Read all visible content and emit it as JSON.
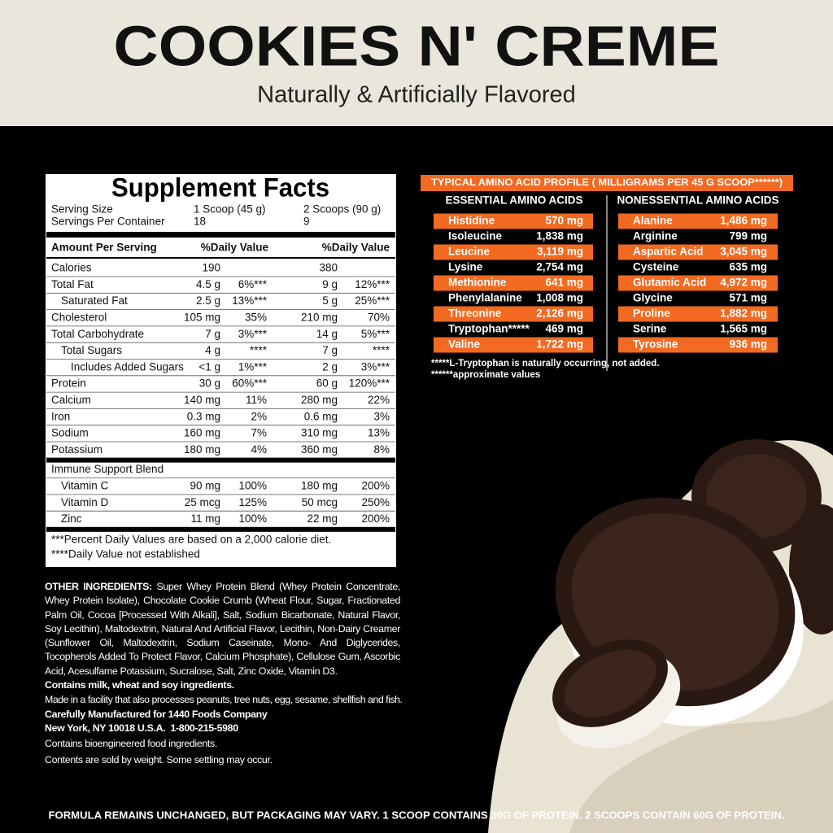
{
  "header": {
    "title": "COOKIES N' CREME",
    "subtitle": "Naturally & Artificially Flavored"
  },
  "supplement_facts": {
    "title": "Supplement Facts",
    "serving_size": {
      "label": "Serving Size",
      "values": [
        "1 Scoop (45 g)",
        "2 Scoops (90 g)"
      ]
    },
    "servings_per_container": {
      "label": "Servings Per Container",
      "values": [
        "18",
        "9"
      ]
    },
    "column_headers": [
      "Amount Per Serving",
      "%Daily Value",
      "%Daily Value"
    ],
    "rows": [
      {
        "cells": [
          "Calories",
          "190",
          null,
          "380",
          null
        ]
      },
      {
        "cells": [
          "Total Fat",
          "4.5 g",
          "6%***",
          "9 g",
          "12%***"
        ],
        "rows": [
          {
            "cells": [
              "Saturated Fat",
              "2.5 g",
              "13%***",
              "5 g",
              "25%***"
            ]
          }
        ]
      },
      {
        "cells": [
          "Cholesterol",
          "105 mg",
          "35%",
          "210 mg",
          "70%"
        ]
      },
      {
        "cells": [
          "Total Carbohydrate",
          "7 g",
          "3%***",
          "14 g",
          "5%***"
        ],
        "rows": [
          {
            "cells": [
              "Total Sugars",
              "4 g",
              "****",
              "7 g",
              "****"
            ],
            "rows": [
              {
                "cells": [
                  "Includes Added Sugars",
                  "<1 g",
                  "1%***",
                  "2 g",
                  "3%***"
                ]
              }
            ]
          }
        ]
      },
      {
        "cells": [
          "Protein",
          "30 g",
          "60%***",
          "60 g",
          "120%***"
        ]
      },
      {
        "cells": [
          "Calcium",
          "140 mg",
          "11%",
          "280 mg",
          "22%"
        ]
      },
      {
        "cells": [
          "Iron",
          "0.3 mg",
          "2%",
          "0.6 mg",
          "3%"
        ]
      },
      {
        "cells": [
          "Sodium",
          "160 mg",
          "7%",
          "310 mg",
          "13%"
        ]
      },
      {
        "cells": [
          "Potassium",
          "180 mg",
          "4%",
          "360 mg",
          "8%"
        ]
      }
    ],
    "blend": {
      "name": "Immune Support Blend",
      "rows": [
        {
          "cells": [
            "Vitamin C",
            "90 mg",
            "100%",
            "180 mg",
            "200%"
          ]
        },
        {
          "cells": [
            "Vitamin D",
            "25 mcg",
            "125%",
            "50 mcg",
            "250%"
          ]
        },
        {
          "cells": [
            "Zinc",
            "11 mg",
            "100%",
            "22 mg",
            "200%"
          ]
        }
      ]
    },
    "footnotes": [
      "***Percent Daily Values are based on a 2,000 calorie diet.",
      "****Daily Value not established"
    ]
  },
  "amino_profile": {
    "title": "TYPICAL AMINO ACID PROFILE ( MILLIGRAMS PER 45 G SCOOP******)",
    "groups": [
      {
        "heading": "ESSENTIAL AMINO ACIDS",
        "acids": [
          {
            "name": "Histidine",
            "amount": "570 mg"
          },
          {
            "name": "Isoleucine",
            "amount": "1,838 mg"
          },
          {
            "name": "Leucine",
            "amount": "3,119 mg"
          },
          {
            "name": "Lysine",
            "amount": "2,754 mg"
          },
          {
            "name": "Methionine",
            "amount": "641 mg"
          },
          {
            "name": "Phenylalanine",
            "amount": "1,008 mg"
          },
          {
            "name": "Threonine",
            "amount": "2,126 mg"
          },
          {
            "name": "Tryptophan*****",
            "amount": "469 mg"
          },
          {
            "name": "Valine",
            "amount": "1,722 mg"
          }
        ]
      },
      {
        "heading": "NONESSENTIAL AMINO ACIDS",
        "acids": [
          {
            "name": "Alanine",
            "amount": "1,486 mg"
          },
          {
            "name": "Arginine",
            "amount": "799 mg"
          },
          {
            "name": "Aspartic Acid",
            "amount": "3,045 mg"
          },
          {
            "name": "Cysteine",
            "amount": "635 mg"
          },
          {
            "name": "Glutamic Acid",
            "amount": "4,972 mg"
          },
          {
            "name": "Glycine",
            "amount": "571 mg"
          },
          {
            "name": "Proline",
            "amount": "1,882 mg"
          },
          {
            "name": "Serine",
            "amount": "1,565 mg"
          },
          {
            "name": "Tyrosine",
            "amount": "936 mg"
          }
        ]
      }
    ],
    "footnotes": [
      "*****L-Tryptophan is naturally occurring, not added.",
      "******approximate values"
    ]
  },
  "ingredients": {
    "label": "OTHER INGREDIENTS:",
    "text": "Super Whey Protein Blend (Whey Protein Concentrate, Whey Protein Isolate), Chocolate Cookie Crumb (Wheat Flour, Sugar, Fractionated Palm Oil, Cocoa [Processed With Alkali], Salt, Sodium Bicarbonate, Natural Flavor, Soy Lecithin), Maltodextrin, Natural And Artificial Flavor, Lecithin, Non-Dairy Creamer (Sunflower Oil, Maltodextrin, Sodium Caseinate, Mono- And Diglycerides, Tocopherols Added To Protect Flavor, Calcium Phosphate), Cellulose Gum, Ascorbic Acid, Acesulfame Potassium, Sucralose, Salt, Zinc Oxide, Vitamin D3.",
    "allergens": "Contains milk, wheat and soy ingredients.",
    "facility": "Made in a facility that also processes peanuts, tree nuts, egg, sesame, shellfish and fish.",
    "manufacturer": "Carefully Manufactured for 1440 Foods Company",
    "address": "New York, NY 10018 U.S.A.  1-800-215-5980",
    "bioengineered": "Contains bioengineered food ingredients.",
    "settling": "Contents are sold by weight. Some settling may occur."
  },
  "footer": "FORMULA REMAINS UNCHANGED, BUT PACKAGING MAY VARY. 1 SCOOP CONTAINS 30G OF PROTEIN. 2 SCOOPS CONTAIN 60G OF PROTEIN."
}
